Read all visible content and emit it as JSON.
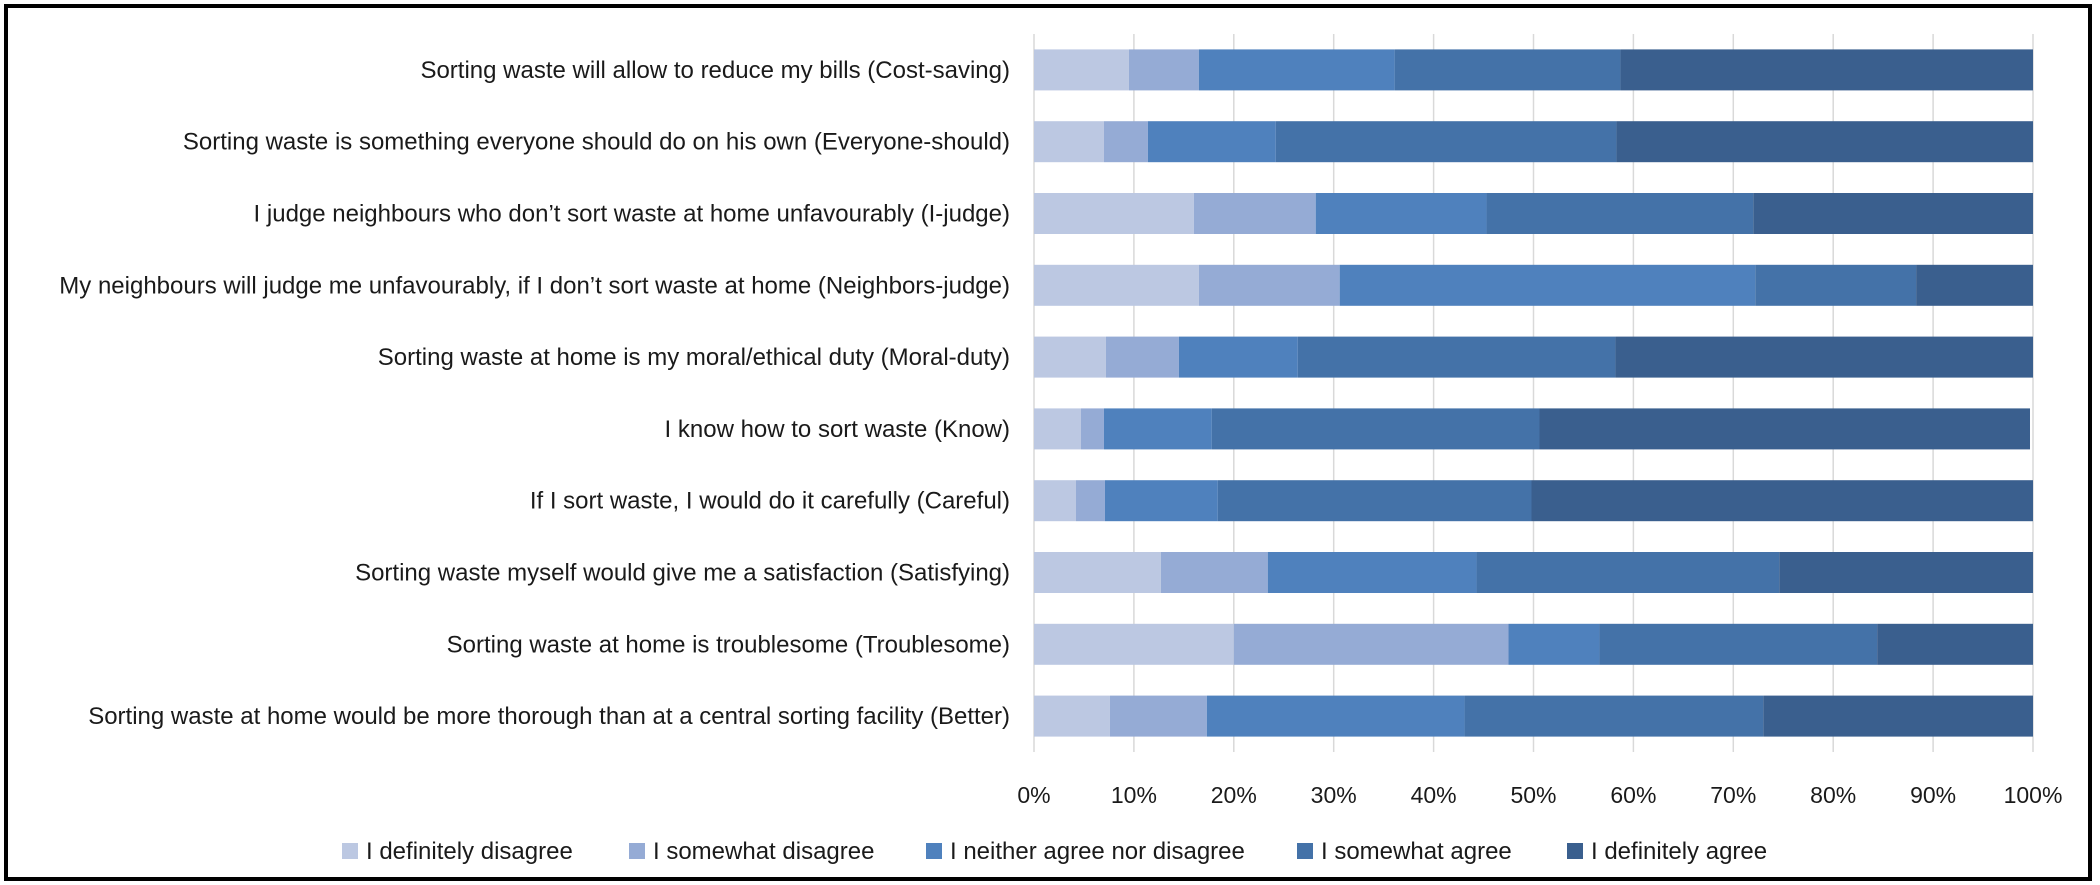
{
  "chart_data": {
    "type": "bar",
    "orientation": "horizontal",
    "stacked": true,
    "normalized_percent": true,
    "categories": [
      "Sorting waste will allow to reduce my bills (Cost-saving)",
      "Sorting waste is something everyone should do on his own (Everyone-should)",
      "I judge neighbours who don’t sort waste at home unfavourably (I-judge)",
      "My neighbours will judge me unfavourably, if I don’t sort waste at home (Neighbors-judge)",
      "Sorting waste at home is my moral/ethical duty (Moral-duty)",
      "I know how to sort waste (Know)",
      "If I sort waste, I would do it carefully (Careful)",
      "Sorting waste myself would give me a satisfaction (Satisfying)",
      "Sorting waste at home is troublesome (Troublesome)",
      "Sorting waste at home would be more thorough than at a central sorting facility (Better)"
    ],
    "series": [
      {
        "name": "I definitely disagree",
        "color": "#bcc8e2",
        "values": [
          9.5,
          7.0,
          16.0,
          16.5,
          7.2,
          4.7,
          4.2,
          12.7,
          20.0,
          7.6
        ]
      },
      {
        "name": "I somewhat disagree",
        "color": "#95abd5",
        "values": [
          7.0,
          4.4,
          12.2,
          14.1,
          7.3,
          2.3,
          2.9,
          10.7,
          27.5,
          9.7
        ]
      },
      {
        "name": "I neither agree nor disagree",
        "color": "#4f81bd",
        "values": [
          19.6,
          12.8,
          17.1,
          41.6,
          11.9,
          10.8,
          11.3,
          20.9,
          9.1,
          25.8
        ]
      },
      {
        "name": "I somewhat agree",
        "color": "#4472a8",
        "values": [
          22.6,
          34.1,
          26.7,
          16.1,
          31.8,
          32.8,
          31.4,
          30.3,
          27.8,
          29.9
        ]
      },
      {
        "name": "I definitely agree",
        "color": "#3a5f8e",
        "values": [
          41.3,
          41.7,
          28.0,
          11.7,
          41.8,
          49.1,
          50.2,
          25.4,
          15.6,
          27.0
        ]
      }
    ],
    "x_ticks": [
      "0%",
      "10%",
      "20%",
      "30%",
      "40%",
      "50%",
      "60%",
      "70%",
      "80%",
      "90%",
      "100%"
    ],
    "xlim": [
      0,
      100
    ],
    "grid": "vertical",
    "legend_position": "bottom"
  }
}
